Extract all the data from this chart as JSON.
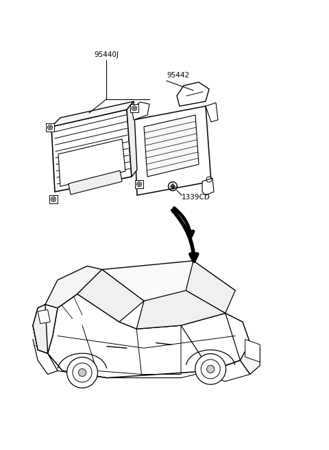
{
  "bg_color": "#ffffff",
  "fig_width": 4.8,
  "fig_height": 6.57,
  "dpi": 100,
  "label_fontsize": 7.5,
  "line_color": "#000000",
  "label_95440J": "95440J",
  "label_95442": "95442",
  "label_1339CD": "1339CD"
}
